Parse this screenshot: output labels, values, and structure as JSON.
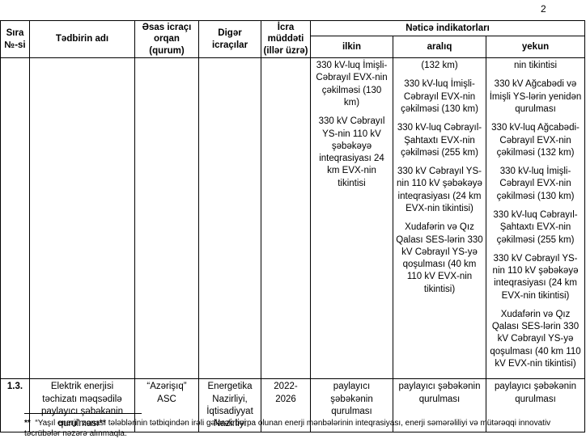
{
  "page": {
    "number": "2"
  },
  "table": {
    "headers": {
      "sira": "Sıra\n№-si",
      "tedbirin_adi": "Tədbirin adı",
      "esas_icraci": "Əsas icraçı\norqan\n(qurum)",
      "diger_icracilar": "Digər\nicraçılar",
      "icra_muddeti": "İcra\nmüddəti\n(illər üzrə)",
      "netice_indikatorlari": "Nəticə indikatorları",
      "ilkin": "ilkin",
      "araliq": "aralıq",
      "yekun": "yekun"
    },
    "continuation_row": {
      "ilkin": [
        "330 kV-luq İmişli-Cəbrayıl EVX-nin çəkilməsi (130 km)",
        "330 kV Cəbrayıl YS-nin 110 kV şəbəkəyə inteqrasiyası 24 km EVX-nin tikintisi"
      ],
      "araliq": [
        "(132 km)",
        "330 kV-luq İmişli-Cəbrayıl EVX-nin çəkilməsi (130 km)",
        "330 kV-luq Cəbrayıl- Şahtaxtı EVX-nin çəkilməsi (255 km)",
        "330 kV Cəbrayıl YS-nin 110 kV şəbəkəyə inteqrasiyası (24 km EVX-nin tikintisi)",
        "Xudafərin və Qız Qalası SES-lərin 330 kV Cəbrayıl YS-yə qoşulması (40 km 110 kV EVX-nin tikintisi)"
      ],
      "yekun": [
        "nin tikintisi",
        "330 kV Ağcabədi və İmişli YS-lərin yenidən qurulması",
        "330 kV-luq Ağcabədi-Cəbrayıl EVX-nin çəkilməsi (132 km)",
        "330 kV-luq İmişli-Cəbrayıl EVX-nin çəkilməsi (130 km)",
        "330 kV-luq Cəbrayıl-Şahtaxtı EVX-nin çəkilməsi (255 km)",
        "330 kV Cəbrayıl YS-nin 110 kV şəbəkəyə inteqrasiyası (24 km EVX-nin tikintisi)",
        "Xudafərin və Qız Qalası SES-lərin 330 kV Cəbrayıl YS-yə qoşulması (40 km 110 kV EVX-nin tikintisi)"
      ]
    },
    "row_1_3": {
      "no": "1.3.",
      "name": "Elektrik enerjisi təchizatı məqsədilə paylayıcı şəbəkənin qurulması**",
      "main_executor": "“Azərişıq”\nASC",
      "other_executors": "Energetika\nNazirliyi,\nİqtisadiyyat\nNazirliyi",
      "period": "2022-\n2026",
      "ilkin": "paylayıcı şəbəkənin qurulması",
      "araliq": "paylayıcı şəbəkənin qurulması",
      "yekun": "paylayıcı şəbəkənin qurulması"
    }
  },
  "footnote": {
    "marker": "**",
    "text": "“Yaşıl enerji” zonası tələblərinin tətbiqindən irəli gələrək bərpa olunan enerji mənbələrinin inteqrasiyası, enerji səmərəliliyi və mütərəqqi innovativ təcrübələr nəzərə alınmaqla."
  }
}
